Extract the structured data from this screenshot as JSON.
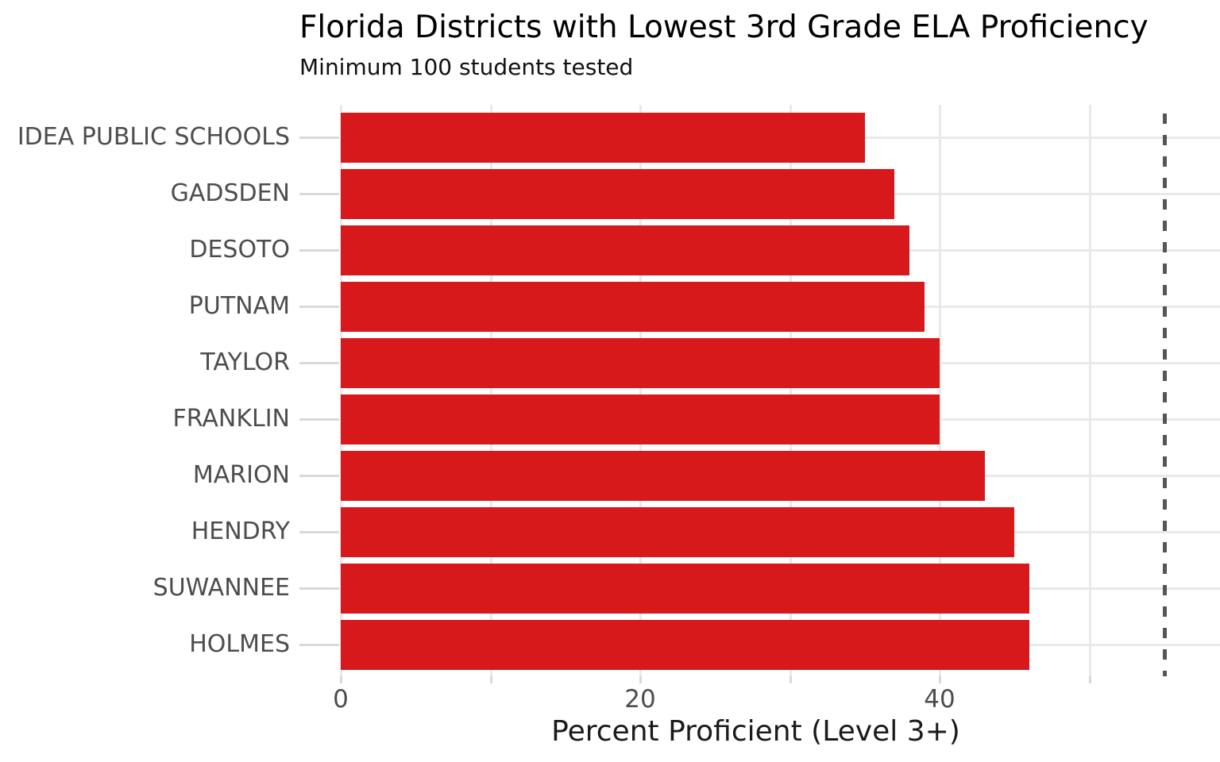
{
  "header": {
    "title": "Florida Districts with Lowest 3rd Grade ELA Proficiency",
    "subtitle": "Minimum 100 students tested"
  },
  "chart_data": {
    "type": "bar",
    "orientation": "horizontal",
    "title": "Florida Districts with Lowest 3rd Grade ELA Proficiency",
    "subtitle": "Minimum 100 students tested",
    "xlabel": "Percent Proficient (Level 3+)",
    "ylabel": "",
    "categories": [
      "IDEA PUBLIC SCHOOLS",
      "GADSDEN",
      "DESOTO",
      "PUTNAM",
      "TAYLOR",
      "FRANKLIN",
      "MARION",
      "HENDRY",
      "SUWANNEE",
      "HOLMES"
    ],
    "values": [
      35,
      37,
      38,
      39,
      40,
      40,
      43,
      45,
      46,
      46
    ],
    "xlim": [
      0,
      58.7
    ],
    "x_labeled_ticks": [
      0,
      20,
      40
    ],
    "x_labeled_tick_text": [
      "0",
      "20",
      "40"
    ],
    "x_unlabeled_ticks": [
      10,
      30,
      50
    ],
    "gridlines": {
      "vertical_every": 10,
      "horizontal_per_category": true
    },
    "reference_line": {
      "value": 55,
      "style": "dashed",
      "label": ""
    },
    "legend": "none"
  },
  "colors": {
    "bar": "#d7191c",
    "grid": "#e9e9e9",
    "axis_tick": "#d9d9d9",
    "axis_text": "#4d4d4d",
    "title_text": "#000000",
    "subtitle_text": "#111111",
    "axis_title_text": "#1a1a1a",
    "reference_line": "#555555",
    "background": "#ffffff"
  }
}
